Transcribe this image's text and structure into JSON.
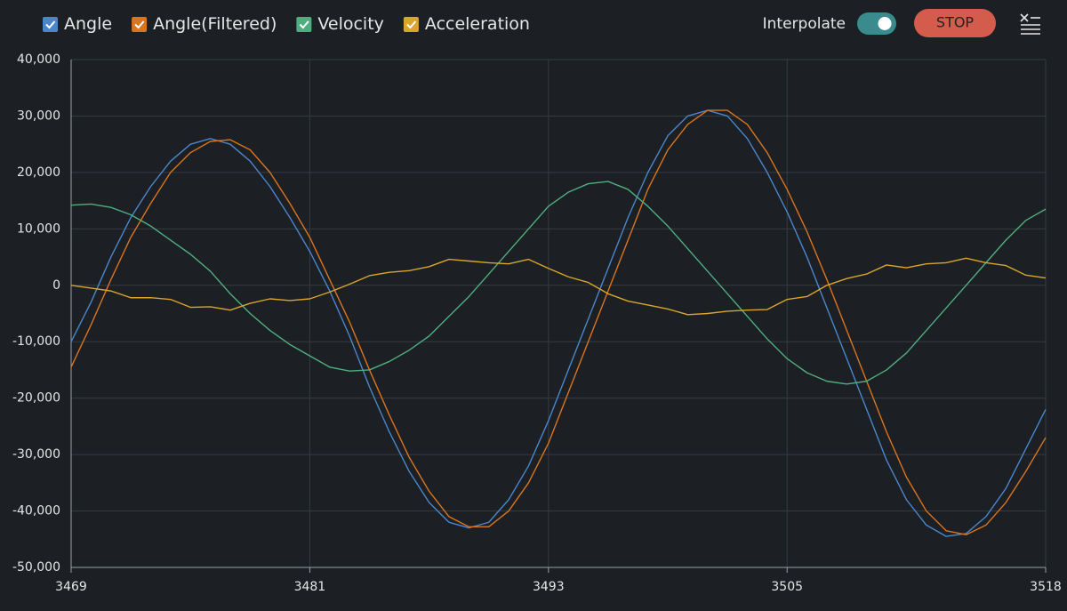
{
  "chart_data": {
    "type": "line",
    "x": [
      3469,
      3470,
      3471,
      3472,
      3473,
      3474,
      3475,
      3476,
      3477,
      3478,
      3479,
      3480,
      3481,
      3482,
      3483,
      3484,
      3485,
      3486,
      3487,
      3488,
      3489,
      3490,
      3491,
      3492,
      3493,
      3494,
      3495,
      3496,
      3497,
      3498,
      3499,
      3500,
      3501,
      3502,
      3503,
      3504,
      3505,
      3506,
      3507,
      3508,
      3509,
      3510,
      3511,
      3512,
      3513,
      3514,
      3515,
      3516,
      3517,
      3518
    ],
    "series": [
      {
        "name": "Angle",
        "color": "#4a86cc",
        "values": [
          -10000,
          -3000,
          5000,
          12000,
          17500,
          22000,
          25000,
          26000,
          25000,
          22000,
          17500,
          12000,
          6000,
          -1000,
          -9000,
          -18000,
          -26000,
          -33000,
          -38500,
          -42000,
          -43000,
          -42000,
          -38000,
          -32000,
          -24000,
          -15000,
          -6000,
          3000,
          12000,
          20000,
          26500,
          30000,
          31000,
          30000,
          26000,
          20000,
          13000,
          5000,
          -4000,
          -13000,
          -22000,
          -31000,
          -38000,
          -42500,
          -44500,
          -44000,
          -41000,
          -36000,
          -29000,
          -22000
        ]
      },
      {
        "name": "Angle(Filtered)",
        "color": "#d9741f",
        "values": [
          -14500,
          -7000,
          1000,
          8500,
          14500,
          20000,
          23500,
          25500,
          25800,
          24000,
          20000,
          14500,
          8500,
          1000,
          -6500,
          -15000,
          -23000,
          -30500,
          -36500,
          -41000,
          -42800,
          -42800,
          -40000,
          -35000,
          -28000,
          -19000,
          -10000,
          -1000,
          8000,
          17000,
          24000,
          28500,
          31000,
          31000,
          28500,
          23500,
          17000,
          9500,
          1000,
          -8000,
          -17000,
          -26000,
          -34000,
          -40000,
          -43500,
          -44200,
          -42500,
          -38500,
          -33000,
          -27000
        ]
      },
      {
        "name": "Velocity",
        "color": "#4fae80",
        "values": [
          14200,
          14400,
          13800,
          12500,
          10500,
          8000,
          5500,
          2500,
          -1500,
          -5000,
          -8000,
          -10500,
          -12500,
          -14500,
          -15200,
          -15000,
          -13500,
          -11500,
          -9000,
          -5500,
          -2000,
          2000,
          6000,
          10000,
          14000,
          16500,
          18000,
          18400,
          17000,
          14000,
          10500,
          6500,
          2500,
          -1500,
          -5500,
          -9500,
          -13000,
          -15500,
          -17000,
          -17500,
          -17000,
          -15000,
          -12000,
          -8000,
          -4000,
          0,
          4000,
          8000,
          11500,
          13500
        ]
      },
      {
        "name": "Acceleration",
        "color": "#d9a52a",
        "values": [
          0,
          -500,
          -1000,
          -2200,
          -2200,
          -2500,
          -3900,
          -3800,
          -4400,
          -3200,
          -2400,
          -2700,
          -2400,
          -1200,
          200,
          1700,
          2300,
          2600,
          3300,
          4600,
          4300,
          4000,
          3800,
          4600,
          3000,
          1500,
          500,
          -1500,
          -2800,
          -3500,
          -4200,
          -5200,
          -5000,
          -4600,
          -4400,
          -4300,
          -2500,
          -2000,
          0,
          1200,
          2000,
          3600,
          3100,
          3800,
          4000,
          4800,
          4000,
          3500,
          1800,
          1300
        ]
      }
    ],
    "xlim": [
      3469,
      3518
    ],
    "xticks": [
      3469,
      3481,
      3493,
      3505,
      3518
    ],
    "ylim": [
      -50000,
      40000
    ],
    "yticks": [
      {
        "value": -50000,
        "label": "-50,000"
      },
      {
        "value": -40000,
        "label": "-40,000"
      },
      {
        "value": -30000,
        "label": "-30,000"
      },
      {
        "value": -20000,
        "label": "-20,000"
      },
      {
        "value": -10000,
        "label": "-10,000"
      },
      0,
      {
        "value": 10000,
        "label": "10,000"
      },
      {
        "value": 20000,
        "label": "20,000"
      },
      {
        "value": 30000,
        "label": "30,000"
      },
      {
        "value": 40000,
        "label": "40,000"
      }
    ],
    "grid": true
  },
  "controls": {
    "interpolate_label": "Interpolate",
    "interpolate": true,
    "stop_label": "STOP"
  }
}
